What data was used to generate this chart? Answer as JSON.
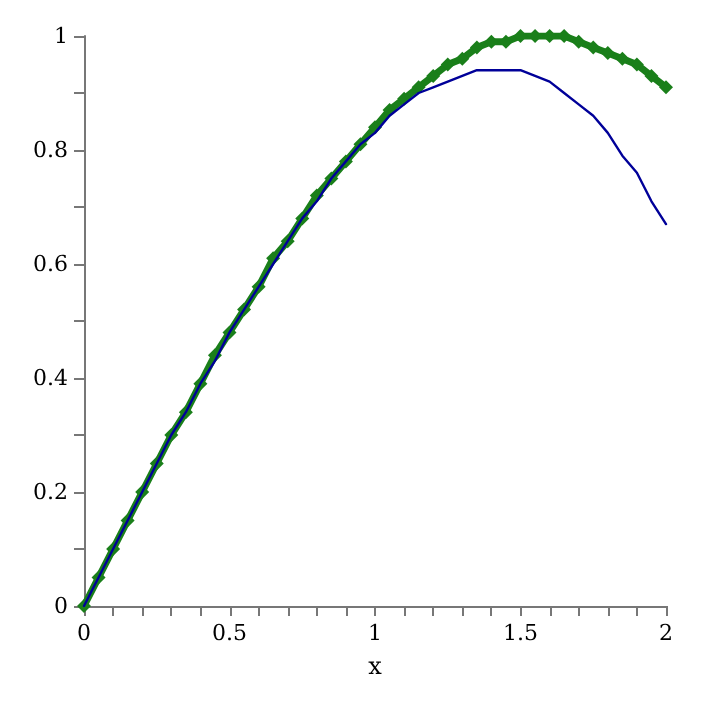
{
  "chart_data": {
    "type": "line",
    "xlabel": "x",
    "x": [
      0,
      0.05,
      0.1,
      0.15,
      0.2,
      0.25,
      0.3,
      0.35,
      0.4,
      0.45,
      0.5,
      0.55,
      0.6,
      0.65,
      0.7,
      0.75,
      0.8,
      0.85,
      0.9,
      0.95,
      1,
      1.05,
      1.1,
      1.15,
      1.2,
      1.25,
      1.3,
      1.35,
      1.4,
      1.45,
      1.5,
      1.55,
      1.6,
      1.65,
      1.7,
      1.75,
      1.8,
      1.85,
      1.9,
      1.95,
      2
    ],
    "series": [
      {
        "color": "#1a7f1a",
        "marker": "diamond",
        "values": [
          0,
          0.05,
          0.1,
          0.15,
          0.2,
          0.25,
          0.3,
          0.34,
          0.39,
          0.44,
          0.48,
          0.52,
          0.56,
          0.61,
          0.64,
          0.68,
          0.72,
          0.75,
          0.78,
          0.81,
          0.84,
          0.87,
          0.89,
          0.91,
          0.93,
          0.95,
          0.96,
          0.98,
          0.99,
          0.99,
          1.0,
          1.0,
          1.0,
          1.0,
          0.99,
          0.98,
          0.97,
          0.96,
          0.95,
          0.93,
          0.91
        ]
      },
      {
        "color": "#000099",
        "marker": "none",
        "values": [
          0,
          0.05,
          0.1,
          0.15,
          0.2,
          0.25,
          0.3,
          0.34,
          0.39,
          0.43,
          0.48,
          0.52,
          0.56,
          0.6,
          0.64,
          0.68,
          0.71,
          0.75,
          0.78,
          0.81,
          0.83,
          0.86,
          0.88,
          0.9,
          0.91,
          0.92,
          0.93,
          0.94,
          0.94,
          0.94,
          0.94,
          0.93,
          0.92,
          0.9,
          0.88,
          0.86,
          0.83,
          0.79,
          0.76,
          0.71,
          0.67
        ]
      }
    ],
    "xlim": [
      0,
      2
    ],
    "xticks": [
      0,
      {
        "value": 0.1,
        "label": null
      },
      {
        "value": 0.2,
        "label": null
      },
      {
        "value": 0.3,
        "label": null
      },
      {
        "value": 0.4,
        "label": null
      },
      0.5,
      {
        "value": 0.6,
        "label": null
      },
      {
        "value": 0.7,
        "label": null
      },
      {
        "value": 0.8,
        "label": null
      },
      {
        "value": 0.9,
        "label": null
      },
      1,
      {
        "value": 1.1,
        "label": null
      },
      {
        "value": 1.2,
        "label": null
      },
      {
        "value": 1.3,
        "label": null
      },
      {
        "value": 1.4,
        "label": null
      },
      1.5,
      {
        "value": 1.6,
        "label": null
      },
      {
        "value": 1.7,
        "label": null
      },
      {
        "value": 1.8,
        "label": null
      },
      {
        "value": 1.9,
        "label": null
      },
      2
    ],
    "ylim": [
      0,
      1
    ],
    "yticks": [
      0,
      {
        "value": 0.1,
        "label": null
      },
      0.2,
      {
        "value": 0.3,
        "label": null
      },
      0.4,
      {
        "value": 0.5,
        "label": null
      },
      0.6,
      {
        "value": 0.7,
        "label": null
      },
      0.8,
      {
        "value": 0.9,
        "label": null
      },
      1
    ],
    "grid": false,
    "line_style": "solid"
  }
}
